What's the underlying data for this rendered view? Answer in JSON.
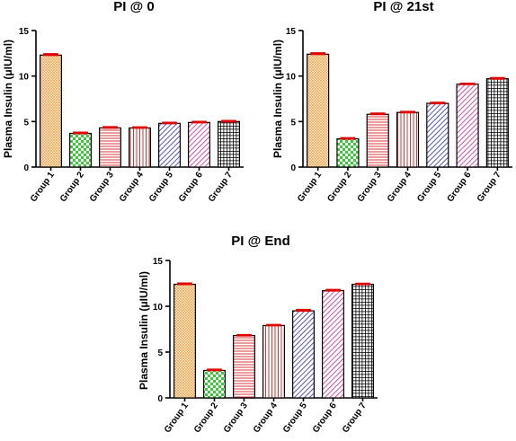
{
  "chart_data": [
    {
      "type": "bar",
      "title": "PI @ 0",
      "ylabel": "Plasma  Insulin (μIU/ml)",
      "xlabel": "",
      "ylim": [
        0,
        15
      ],
      "yticks": [
        0,
        5,
        10,
        15
      ],
      "categories": [
        "Group 1",
        "Group 2",
        "Group 3",
        "Group 4",
        "Group 5",
        "Group 6",
        "Group 7"
      ],
      "values": [
        12.3,
        3.7,
        4.3,
        4.3,
        4.8,
        4.9,
        5.0
      ],
      "errors": [
        0.12,
        0.1,
        0.1,
        0.08,
        0.08,
        0.08,
        0.08
      ]
    },
    {
      "type": "bar",
      "title": "PI @ 21st",
      "ylabel": "Plasma  Insulin (μIU/ml)",
      "xlabel": "",
      "ylim": [
        0,
        15
      ],
      "yticks": [
        0,
        5,
        10,
        15
      ],
      "categories": [
        "Group 1",
        "Group 2",
        "Group 3",
        "Group 4",
        "Group 5",
        "Group 6",
        "Group 7"
      ],
      "values": [
        12.4,
        3.1,
        5.8,
        6.0,
        7.0,
        9.1,
        9.7
      ],
      "errors": [
        0.12,
        0.1,
        0.1,
        0.08,
        0.08,
        0.08,
        0.1
      ]
    },
    {
      "type": "bar",
      "title": "PI @ End",
      "ylabel": "Plasma  Insulin (μIU/ml)",
      "xlabel": "",
      "ylim": [
        0,
        15
      ],
      "yticks": [
        0,
        5,
        10,
        15
      ],
      "categories": [
        "Group 1",
        "Group 2",
        "Group 3",
        "Group 4",
        "Group 5",
        "Group 6",
        "Group 7"
      ],
      "values": [
        12.4,
        3.0,
        6.8,
        7.9,
        9.5,
        11.7,
        12.4
      ],
      "errors": [
        0.1,
        0.1,
        0.08,
        0.08,
        0.12,
        0.1,
        0.08
      ]
    }
  ],
  "bar_styles": [
    {
      "group": "Group 1",
      "color": "#f0a040",
      "pattern": "crosshatch-fine"
    },
    {
      "group": "Group 2",
      "color": "#33cc33",
      "pattern": "checker"
    },
    {
      "group": "Group 3",
      "color": "#d83838",
      "pattern": "horizontal-lines"
    },
    {
      "group": "Group 4",
      "color": "#e03030",
      "pattern": "vertical-lines"
    },
    {
      "group": "Group 5",
      "color": "#2828c8",
      "pattern": "diagonal-lines"
    },
    {
      "group": "Group 6",
      "color": "#d8208a",
      "pattern": "diagonal-lines"
    },
    {
      "group": "Group 7",
      "color": "#000000",
      "pattern": "grid"
    }
  ],
  "colors": {
    "error_bar": "#e00000",
    "axis": "#000000",
    "bar_outline": "#000000"
  }
}
